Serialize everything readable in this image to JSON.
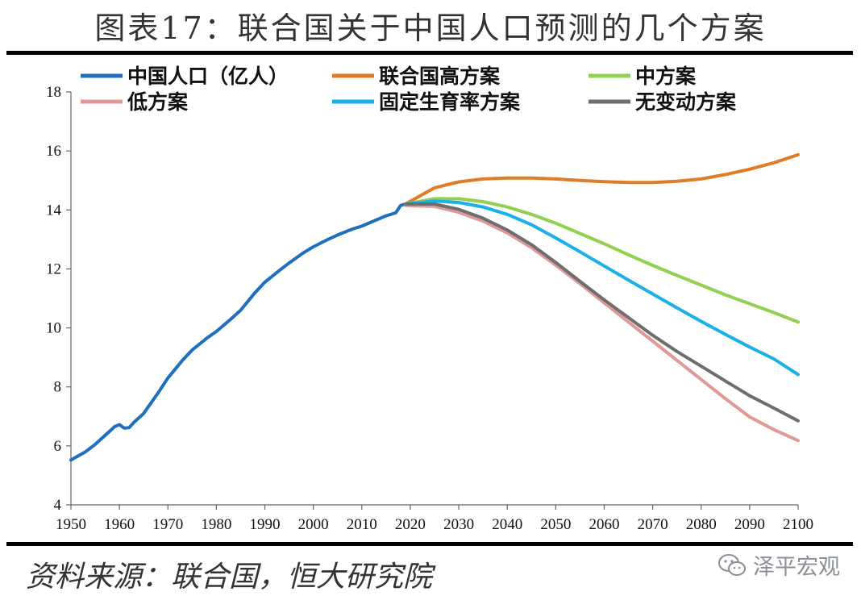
{
  "header": {
    "title": "图表17：联合国关于中国人口预测的几个方案"
  },
  "footer": {
    "source": "资料来源：联合国，恒大研究院",
    "watermark": "泽平宏观"
  },
  "colors": {
    "historical": "#1f6fbf",
    "high": "#e07b28",
    "medium": "#92d050",
    "low": "#e09898",
    "constant_fertility": "#1ab0e8",
    "no_change": "#6e6e6e"
  },
  "chart_data": {
    "type": "line",
    "xlim": [
      1950,
      2100
    ],
    "ylim": [
      4,
      18
    ],
    "xticks": [
      1950,
      1960,
      1970,
      1980,
      1990,
      2000,
      2010,
      2020,
      2030,
      2040,
      2050,
      2060,
      2070,
      2080,
      2090,
      2100
    ],
    "yticks": [
      4,
      6,
      8,
      10,
      12,
      14,
      16,
      18
    ],
    "grid": false,
    "legend_position": "top",
    "series": [
      {
        "name": "中国人口（亿人）",
        "color_key": "historical",
        "x": [
          1950,
          1953,
          1955,
          1958,
          1959,
          1960,
          1961,
          1962,
          1963,
          1965,
          1968,
          1970,
          1973,
          1975,
          1978,
          1980,
          1983,
          1985,
          1988,
          1990,
          1993,
          1995,
          1998,
          2000,
          2003,
          2005,
          2008,
          2010,
          2013,
          2015,
          2017,
          2018,
          2019
        ],
        "y": [
          5.52,
          5.8,
          6.05,
          6.5,
          6.65,
          6.72,
          6.6,
          6.62,
          6.8,
          7.1,
          7.8,
          8.3,
          8.9,
          9.25,
          9.65,
          9.88,
          10.3,
          10.6,
          11.2,
          11.55,
          11.95,
          12.2,
          12.55,
          12.75,
          13.0,
          13.15,
          13.35,
          13.45,
          13.66,
          13.8,
          13.9,
          14.15,
          14.2
        ]
      },
      {
        "name": "联合国高方案",
        "color_key": "high",
        "x": [
          2019,
          2025,
          2030,
          2035,
          2040,
          2045,
          2050,
          2055,
          2060,
          2065,
          2070,
          2075,
          2080,
          2085,
          2090,
          2095,
          2100
        ],
        "y": [
          14.2,
          14.75,
          14.95,
          15.05,
          15.08,
          15.08,
          15.05,
          15.0,
          14.96,
          14.93,
          14.93,
          14.97,
          15.05,
          15.2,
          15.38,
          15.6,
          15.87
        ]
      },
      {
        "name": "中方案",
        "color_key": "medium",
        "x": [
          2019,
          2025,
          2030,
          2035,
          2040,
          2045,
          2050,
          2055,
          2060,
          2065,
          2070,
          2075,
          2080,
          2085,
          2090,
          2095,
          2100
        ],
        "y": [
          14.2,
          14.38,
          14.38,
          14.28,
          14.1,
          13.85,
          13.55,
          13.2,
          12.85,
          12.48,
          12.12,
          11.78,
          11.45,
          11.12,
          10.82,
          10.52,
          10.2
        ]
      },
      {
        "name": "低方案",
        "color_key": "low",
        "x": [
          2019,
          2025,
          2030,
          2035,
          2040,
          2045,
          2050,
          2055,
          2060,
          2065,
          2070,
          2075,
          2080,
          2085,
          2090,
          2095,
          2100
        ],
        "y": [
          14.15,
          14.12,
          13.92,
          13.62,
          13.22,
          12.72,
          12.13,
          11.5,
          10.85,
          10.2,
          9.55,
          8.9,
          8.25,
          7.6,
          6.98,
          6.55,
          6.18
        ]
      },
      {
        "name": "固定生育率方案",
        "color_key": "constant_fertility",
        "x": [
          2019,
          2025,
          2030,
          2035,
          2040,
          2045,
          2050,
          2055,
          2060,
          2065,
          2070,
          2075,
          2080,
          2085,
          2090,
          2095,
          2100
        ],
        "y": [
          14.2,
          14.3,
          14.25,
          14.1,
          13.85,
          13.5,
          13.05,
          12.58,
          12.1,
          11.62,
          11.15,
          10.68,
          10.22,
          9.78,
          9.35,
          8.95,
          8.42
        ]
      },
      {
        "name": "无变动方案",
        "color_key": "no_change",
        "x": [
          2019,
          2025,
          2030,
          2035,
          2040,
          2045,
          2050,
          2055,
          2060,
          2065,
          2070,
          2075,
          2080,
          2085,
          2090,
          2095,
          2100
        ],
        "y": [
          14.2,
          14.2,
          14.02,
          13.72,
          13.32,
          12.82,
          12.22,
          11.58,
          10.95,
          10.35,
          9.75,
          9.2,
          8.7,
          8.2,
          7.7,
          7.28,
          6.85
        ]
      }
    ]
  }
}
